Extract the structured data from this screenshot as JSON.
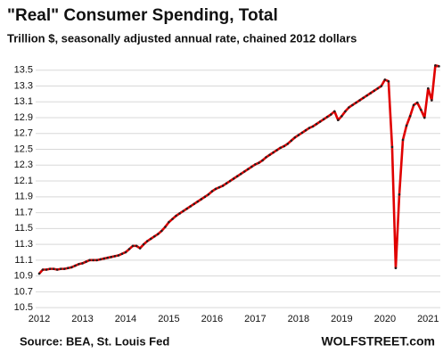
{
  "chart_data": {
    "type": "line",
    "title": "\"Real\" Consumer Spending, Total",
    "subtitle": "Trillion $, seasonally adjusted annual rate, chained 2012 dollars",
    "source": "Source: BEA, St. Louis Fed",
    "brand": "WOLFSTREET.com",
    "categories": [
      "2012",
      null,
      null,
      null,
      null,
      null,
      null,
      null,
      null,
      null,
      null,
      null,
      "2013",
      null,
      null,
      null,
      null,
      null,
      null,
      null,
      null,
      null,
      null,
      null,
      "2014",
      null,
      null,
      null,
      null,
      null,
      null,
      null,
      null,
      null,
      null,
      null,
      "2015",
      null,
      null,
      null,
      null,
      null,
      null,
      null,
      null,
      null,
      null,
      null,
      "2016",
      null,
      null,
      null,
      null,
      null,
      null,
      null,
      null,
      null,
      null,
      null,
      "2017",
      null,
      null,
      null,
      null,
      null,
      null,
      null,
      null,
      null,
      null,
      null,
      "2018",
      null,
      null,
      null,
      null,
      null,
      null,
      null,
      null,
      null,
      null,
      null,
      "2019",
      null,
      null,
      null,
      null,
      null,
      null,
      null,
      null,
      null,
      null,
      null,
      "2020",
      null,
      null,
      null,
      null,
      null,
      null,
      null,
      null,
      null,
      null,
      null,
      "2021",
      null,
      null,
      null
    ],
    "values": [
      10.93,
      10.98,
      10.98,
      10.99,
      10.99,
      10.98,
      10.99,
      10.99,
      11.0,
      11.01,
      11.03,
      11.05,
      11.06,
      11.08,
      11.1,
      11.1,
      11.1,
      11.11,
      11.12,
      11.13,
      11.14,
      11.15,
      11.16,
      11.18,
      11.2,
      11.24,
      11.28,
      11.28,
      11.25,
      11.3,
      11.34,
      11.37,
      11.4,
      11.43,
      11.47,
      11.52,
      11.58,
      11.62,
      11.66,
      11.69,
      11.72,
      11.75,
      11.78,
      11.81,
      11.84,
      11.87,
      11.9,
      11.93,
      11.97,
      12.0,
      12.02,
      12.04,
      12.07,
      12.1,
      12.13,
      12.16,
      12.19,
      12.22,
      12.25,
      12.28,
      12.31,
      12.33,
      12.36,
      12.4,
      12.43,
      12.46,
      12.49,
      12.52,
      12.54,
      12.57,
      12.61,
      12.65,
      12.68,
      12.71,
      12.74,
      12.77,
      12.79,
      12.82,
      12.85,
      12.88,
      12.91,
      12.94,
      12.98,
      12.87,
      12.92,
      12.98,
      13.03,
      13.06,
      13.09,
      13.12,
      13.15,
      13.18,
      13.21,
      13.24,
      13.27,
      13.3,
      13.38,
      13.36,
      12.53,
      11.0,
      11.93,
      12.62,
      12.8,
      12.92,
      13.06,
      13.09,
      13.0,
      12.9,
      13.27,
      13.12,
      13.56,
      13.55
    ],
    "color": "#e00000",
    "marker_color": "#222222",
    "ylim": [
      10.4,
      13.7
    ],
    "yticks": [
      10.5,
      10.7,
      10.9,
      11.1,
      11.3,
      11.5,
      11.7,
      11.9,
      12.1,
      12.3,
      12.5,
      12.7,
      12.9,
      13.1,
      13.3,
      13.5
    ],
    "grid": true
  }
}
